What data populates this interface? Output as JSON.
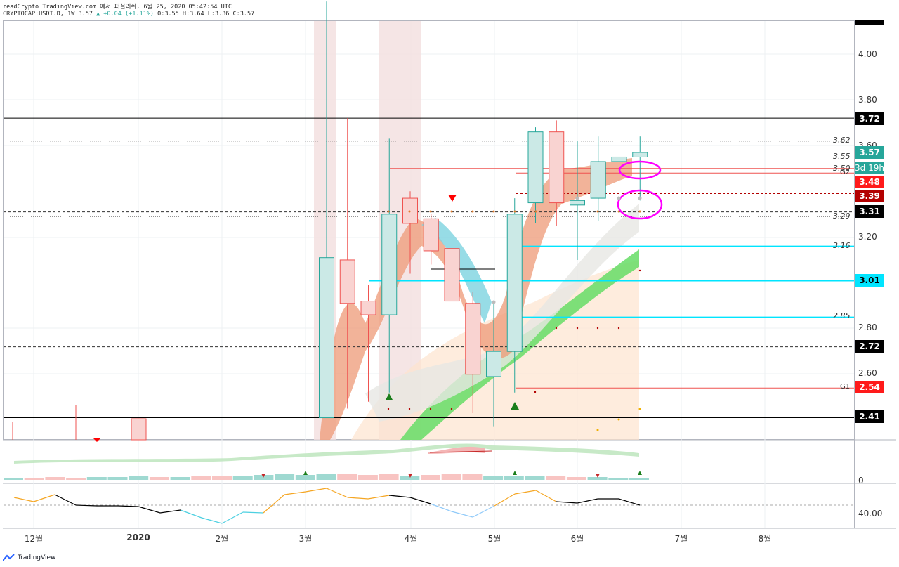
{
  "header": {
    "line1": "readCrypto TradingView.com 에서 퍼블리쉬, 6월 25, 2020 05:42:54 UTC",
    "symbol": "CRYPTOCAP:USDT.D, 1W 3.57",
    "change": "▲ +0.04 (+1.11%)",
    "ohlc": "O:3.55 H:3.64 L:3.36 C:3.57"
  },
  "price_axis": {
    "ticks": [
      "4.00",
      "3.80",
      "3.60",
      "3.20",
      "2.80",
      "2.60"
    ],
    "badges": [
      {
        "label": "3.72",
        "color": "#000000"
      },
      {
        "label": "3.57",
        "color": "#26a69a"
      },
      {
        "label": "3d 19h",
        "color": "#26a69a"
      },
      {
        "label": "3.48",
        "color": "#ff1a1a"
      },
      {
        "label": "3.39",
        "color": "#b30000"
      },
      {
        "label": "3.31",
        "color": "#000000"
      },
      {
        "label": "3.01",
        "color": "#00e5ff"
      },
      {
        "label": "2.72",
        "color": "#000000"
      },
      {
        "label": "2.54",
        "color": "#ff1a1a"
      },
      {
        "label": "2.41",
        "color": "#000000"
      }
    ]
  },
  "level_labels": [
    "3.62",
    "3.55",
    "3.50",
    "G2",
    "3.29",
    "3.16",
    "2.85",
    "G1"
  ],
  "time_axis": [
    "12월",
    "2020",
    "2월",
    "3월",
    "4월",
    "5월",
    "6월",
    "7월",
    "8월"
  ],
  "osc_axis": {
    "top": "0",
    "bottom": "40.00"
  },
  "branding": {
    "logo_text": "TradingView"
  },
  "chart_data": {
    "type": "candlestick",
    "timeframe": "1W",
    "candles": [
      {
        "x": "2020-03-02",
        "o": 2.41,
        "h": 4.23,
        "l": 2.41,
        "c": 3.11
      },
      {
        "x": "2020-03-09",
        "o": 3.1,
        "h": 3.72,
        "l": 2.45,
        "c": 2.91
      },
      {
        "x": "2020-03-16",
        "o": 2.92,
        "h": 2.99,
        "l": 2.48,
        "c": 2.86
      },
      {
        "x": "2020-03-23",
        "o": 2.86,
        "h": 3.63,
        "l": 2.52,
        "c": 3.3
      },
      {
        "x": "2020-03-30",
        "o": 3.37,
        "h": 3.4,
        "l": 3.04,
        "c": 3.26
      },
      {
        "x": "2020-04-06",
        "o": 3.28,
        "h": 3.3,
        "l": 3.08,
        "c": 3.14
      },
      {
        "x": "2020-04-13",
        "o": 3.15,
        "h": 3.29,
        "l": 2.89,
        "c": 2.92
      },
      {
        "x": "2020-04-20",
        "o": 2.91,
        "h": 2.96,
        "l": 2.43,
        "c": 2.6
      },
      {
        "x": "2020-04-27",
        "o": 2.59,
        "h": 2.92,
        "l": 2.37,
        "c": 2.7
      },
      {
        "x": "2020-05-04",
        "o": 2.7,
        "h": 3.37,
        "l": 2.52,
        "c": 3.3
      },
      {
        "x": "2020-05-11",
        "o": 3.35,
        "h": 3.68,
        "l": 3.26,
        "c": 3.66
      },
      {
        "x": "2020-05-18",
        "o": 3.66,
        "h": 3.71,
        "l": 3.25,
        "c": 3.35
      },
      {
        "x": "2020-05-25",
        "o": 3.34,
        "h": 3.62,
        "l": 3.1,
        "c": 3.36
      },
      {
        "x": "2020-06-01",
        "o": 3.37,
        "h": 3.64,
        "l": 3.27,
        "c": 3.53
      },
      {
        "x": "2020-06-08",
        "o": 3.53,
        "h": 3.72,
        "l": 3.32,
        "c": 3.55
      },
      {
        "x": "2020-06-15",
        "o": 3.55,
        "h": 3.64,
        "l": 3.36,
        "c": 3.57
      }
    ],
    "horizontal_levels": [
      3.72,
      3.62,
      3.55,
      3.5,
      3.48,
      3.39,
      3.31,
      3.29,
      3.16,
      3.01,
      2.85,
      2.72,
      2.54,
      2.41
    ],
    "oscillator_values": [
      44,
      47,
      42,
      41,
      41,
      39,
      40,
      38,
      35,
      40,
      40,
      49,
      50,
      52,
      49,
      48,
      47,
      44,
      39,
      46,
      50,
      51,
      44,
      43,
      45,
      46,
      43
    ]
  }
}
